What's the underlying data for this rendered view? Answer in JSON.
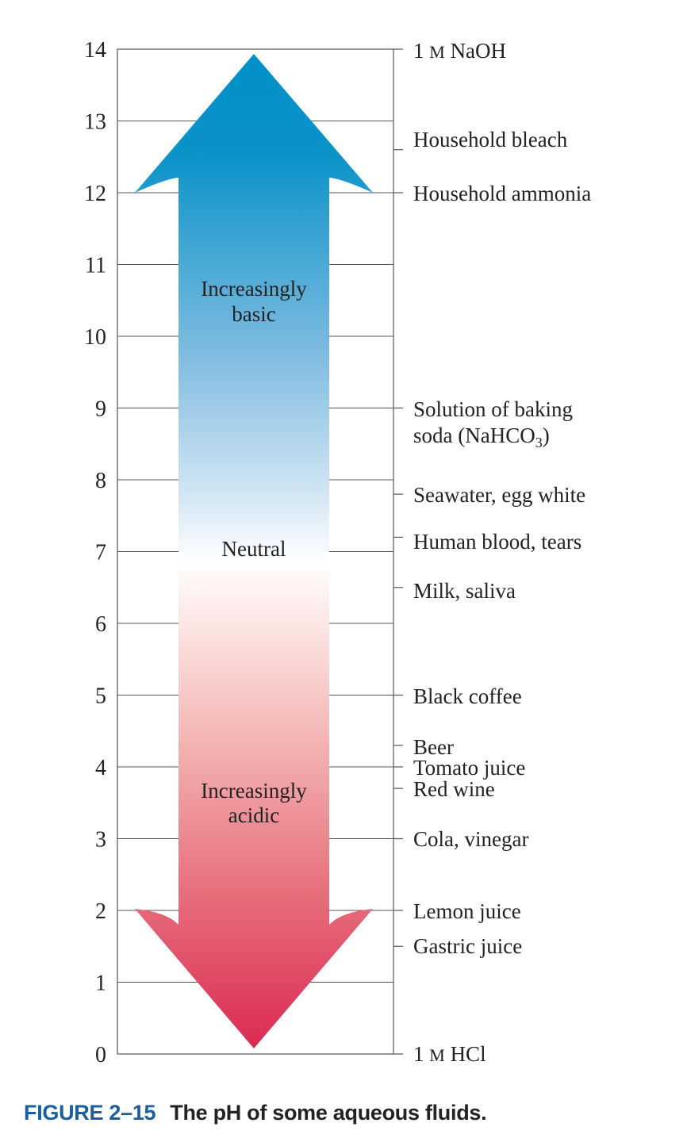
{
  "figure": {
    "number": "FIGURE 2–15",
    "caption": "The pH of some aqueous fluids."
  },
  "scale": {
    "ticks": [
      "0",
      "1",
      "2",
      "3",
      "4",
      "5",
      "6",
      "7",
      "8",
      "9",
      "10",
      "11",
      "12",
      "13",
      "14"
    ]
  },
  "arrow": {
    "label_basic_line1": "Increasingly",
    "label_basic_line2": "basic",
    "label_neutral": "Neutral",
    "label_acidic_line1": "Increasingly",
    "label_acidic_line2": "acidic",
    "color_basic": "#0090c8",
    "color_neutral": "#ffffff",
    "color_acidic": "#db2a52"
  },
  "substances": [
    {
      "ph": 14,
      "label": "1 M NaOH",
      "parts": [
        "1 ",
        "M",
        " NaOH"
      ]
    },
    {
      "ph": 12.6,
      "label": "Household bleach"
    },
    {
      "ph": 12,
      "label": "Household ammonia"
    },
    {
      "ph": 9,
      "label_line1": "Solution of baking",
      "label_line2": "soda (NaHCO3)",
      "line2_main": "soda (NaHCO",
      "line2_sub": "3",
      "line2_end": ")"
    },
    {
      "ph": 7.8,
      "label": "Seawater, egg white"
    },
    {
      "ph": 7.2,
      "label": "Human blood, tears"
    },
    {
      "ph": 6.5,
      "label": "Milk, saliva"
    },
    {
      "ph": 5,
      "label": "Black coffee"
    },
    {
      "ph": 4.3,
      "label": "Beer"
    },
    {
      "ph": 4,
      "label": "Tomato juice"
    },
    {
      "ph": 3.7,
      "label": "Red wine"
    },
    {
      "ph": 3,
      "label": "Cola, vinegar"
    },
    {
      "ph": 2,
      "label": "Lemon juice"
    },
    {
      "ph": 1.5,
      "label": "Gastric juice"
    },
    {
      "ph": 0,
      "label": "1 M HCl",
      "parts": [
        "1 ",
        "M",
        " HCl"
      ]
    }
  ]
}
